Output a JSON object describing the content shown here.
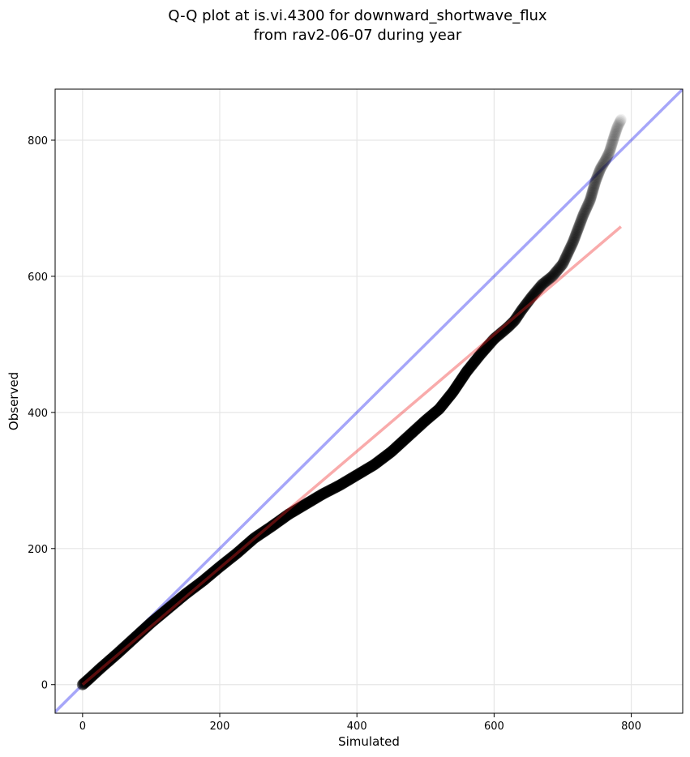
{
  "chart_data": {
    "type": "scatter",
    "title_line1": "Q-Q plot at is.vi.4300 for downward_shortwave_flux",
    "title_line2": "from rav2-06-07 during year",
    "xlabel": "Simulated",
    "ylabel": "Observed",
    "xlim": [
      -40,
      875
    ],
    "ylim": [
      -42,
      875
    ],
    "xticks": [
      0,
      200,
      400,
      600,
      800
    ],
    "yticks": [
      0,
      200,
      400,
      600,
      800
    ],
    "xtick_labels": [
      "0",
      "200",
      "400",
      "600",
      "800"
    ],
    "ytick_labels": [
      "0",
      "200",
      "400",
      "600",
      "800"
    ],
    "grid": true,
    "quantile_curve": [
      [
        0,
        0
      ],
      [
        10,
        9
      ],
      [
        25,
        23
      ],
      [
        50,
        45
      ],
      [
        75,
        68
      ],
      [
        100,
        91
      ],
      [
        125,
        112
      ],
      [
        150,
        133
      ],
      [
        175,
        152
      ],
      [
        200,
        173
      ],
      [
        225,
        193
      ],
      [
        250,
        215
      ],
      [
        275,
        232
      ],
      [
        300,
        250
      ],
      [
        325,
        265
      ],
      [
        350,
        280
      ],
      [
        375,
        293
      ],
      [
        400,
        308
      ],
      [
        425,
        323
      ],
      [
        450,
        342
      ],
      [
        475,
        365
      ],
      [
        500,
        388
      ],
      [
        520,
        405
      ],
      [
        540,
        430
      ],
      [
        560,
        460
      ],
      [
        580,
        485
      ],
      [
        600,
        508
      ],
      [
        620,
        525
      ],
      [
        630,
        535
      ],
      [
        640,
        550
      ],
      [
        655,
        570
      ],
      [
        670,
        588
      ],
      [
        685,
        600
      ],
      [
        700,
        618
      ],
      [
        715,
        650
      ],
      [
        730,
        690
      ],
      [
        740,
        712
      ],
      [
        748,
        740
      ],
      [
        755,
        758
      ],
      [
        762,
        770
      ],
      [
        768,
        782
      ],
      [
        775,
        805
      ],
      [
        780,
        820
      ],
      [
        785,
        830
      ]
    ],
    "identity_line": {
      "color": "#0000ee",
      "x": [
        -40,
        875
      ],
      "y": [
        -40,
        875
      ]
    },
    "fit_line": {
      "color": "#ee2222",
      "x": [
        0,
        785
      ],
      "y": [
        0,
        673
      ]
    },
    "marker_color": "#000000"
  }
}
